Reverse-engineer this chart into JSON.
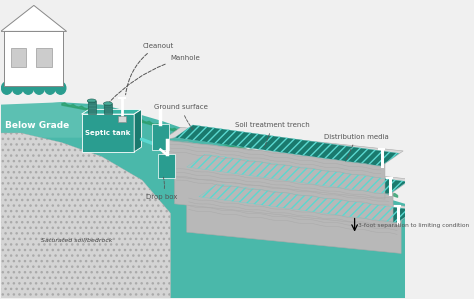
{
  "bg_color": "#f0f0f0",
  "teal": "#3aada0",
  "teal_dark": "#1a7a6e",
  "teal_med": "#2a9d90",
  "teal_light": "#5cc5b8",
  "teal_bg": "#4ab8aa",
  "white": "#ffffff",
  "gray_light": "#d8d8d8",
  "gray_med": "#b8b8b8",
  "gray_dark": "#888888",
  "rock_bg": "#d4d4d4",
  "ann_color": "#555555",
  "labels": {
    "below_grade": "Below Grade",
    "septic_tank": "Septic tank",
    "cleanout": "Cleanout",
    "manhole": "Manhole",
    "ground_surface": "Ground surface",
    "soil_treatment": "Soil treatment trench",
    "distribution_media": "Distribution media",
    "drop_box": "Drop box",
    "saturated": "Saturated soil/bedrock",
    "separation": "3-foot separation to limiting condition"
  },
  "figsize": [
    4.74,
    2.99
  ],
  "dpi": 100
}
